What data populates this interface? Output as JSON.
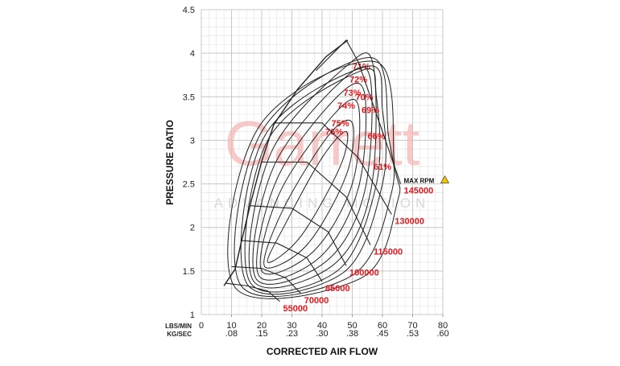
{
  "chart_data": {
    "type": "compressor-map",
    "x_label": "CORRECTED AIR FLOW",
    "y_label": "PRESSURE RATIO",
    "x_unit_label": "LBS/MIN",
    "x2_unit_label": "KG/SEC",
    "watermark": "Garrett",
    "watermark_sub": "ADVANCING MOTION",
    "max_rpm_label": "MAX RPM",
    "xlim": [
      0,
      80
    ],
    "ylim": [
      1,
      4.5
    ],
    "xticks": [
      0,
      10,
      20,
      30,
      40,
      50,
      60,
      70,
      80
    ],
    "x2ticks": [
      {
        "value": 10,
        "label": ".08"
      },
      {
        "value": 20,
        "label": ".15"
      },
      {
        "value": 30,
        "label": ".23"
      },
      {
        "value": 40,
        "label": ".30"
      },
      {
        "value": 50,
        "label": ".38"
      },
      {
        "value": 60,
        "label": ".45"
      },
      {
        "value": 70,
        "label": ".53"
      },
      {
        "value": 80,
        "label": ".60"
      }
    ],
    "yticks": [
      1,
      1.5,
      2,
      2.5,
      3,
      3.5,
      4,
      4.5
    ],
    "grid": true,
    "line_color": "#222222",
    "label_color": "#e8161b",
    "surge_line": {
      "x": [
        7.5,
        11.2,
        13.3,
        16.5,
        20,
        24,
        32,
        41.3,
        48.5
      ],
      "y": [
        1.33,
        1.52,
        1.84,
        2.3,
        2.76,
        3.18,
        3.59,
        3.96,
        4.15
      ]
    },
    "speed_lines": [
      {
        "name": "55000",
        "x": [
          8,
          15,
          22,
          26
        ],
        "y": [
          1.36,
          1.33,
          1.27,
          1.15
        ]
      },
      {
        "name": "70000",
        "x": [
          10,
          20,
          28,
          33
        ],
        "y": [
          1.55,
          1.53,
          1.42,
          1.24
        ]
      },
      {
        "name": "85000",
        "x": [
          13,
          25,
          35,
          40
        ],
        "y": [
          1.85,
          1.82,
          1.65,
          1.38
        ]
      },
      {
        "name": "100000",
        "x": [
          16,
          30,
          42,
          48
        ],
        "y": [
          2.25,
          2.22,
          1.95,
          1.56
        ]
      },
      {
        "name": "115000",
        "x": [
          20,
          35,
          48,
          56
        ],
        "y": [
          2.75,
          2.75,
          2.35,
          1.8
        ]
      },
      {
        "name": "130000",
        "x": [
          24,
          40,
          52,
          63
        ],
        "y": [
          3.2,
          3.2,
          2.8,
          2.15
        ]
      },
      {
        "name": "145000",
        "x": [
          38,
          48,
          52,
          58,
          66
        ],
        "y": [
          3.8,
          4.15,
          3.9,
          3.3,
          2.5
        ]
      }
    ],
    "efficiency_islands": [
      {
        "name": "76%",
        "x": [
          22,
          33,
          46,
          48,
          40,
          28
        ],
        "y": [
          1.6,
          1.9,
          2.7,
          3.1,
          2.8,
          2.05
        ]
      },
      {
        "name": "75%",
        "x": [
          21,
          35,
          48,
          50,
          42,
          27
        ],
        "y": [
          1.55,
          1.8,
          2.6,
          3.2,
          3.05,
          2.2
        ]
      },
      {
        "name": "74%",
        "x": [
          20,
          37,
          50,
          52,
          44,
          26
        ],
        "y": [
          1.5,
          1.72,
          2.5,
          3.4,
          3.3,
          2.4
        ]
      },
      {
        "name": "73%",
        "x": [
          19,
          39,
          52,
          54,
          45,
          25
        ],
        "y": [
          1.45,
          1.65,
          2.45,
          3.55,
          3.5,
          2.55
        ]
      },
      {
        "name": "72%",
        "x": [
          18,
          41,
          54,
          56,
          47,
          24
        ],
        "y": [
          1.42,
          1.6,
          2.4,
          3.7,
          3.7,
          2.7
        ]
      },
      {
        "name": "71%",
        "x": [
          17,
          43,
          56,
          57,
          48,
          23
        ],
        "y": [
          1.4,
          1.55,
          2.4,
          3.85,
          3.85,
          2.85
        ]
      },
      {
        "name": "70%",
        "x": [
          16,
          45,
          58,
          58,
          53,
          22
        ],
        "y": [
          1.38,
          1.5,
          2.5,
          3.5,
          3.8,
          3.0
        ]
      },
      {
        "name": "69%",
        "x": [
          15,
          47,
          60,
          60,
          55,
          21
        ],
        "y": [
          1.36,
          1.48,
          2.5,
          3.35,
          3.85,
          3.05
        ]
      },
      {
        "name": "66%",
        "x": [
          13,
          50,
          63,
          62,
          56,
          20
        ],
        "y": [
          1.34,
          1.45,
          2.4,
          3.05,
          3.95,
          3.1
        ]
      },
      {
        "name": "61%",
        "x": [
          11,
          53,
          65,
          64,
          58,
          19
        ],
        "y": [
          1.32,
          1.42,
          2.3,
          2.7,
          3.9,
          3.15
        ]
      }
    ]
  }
}
